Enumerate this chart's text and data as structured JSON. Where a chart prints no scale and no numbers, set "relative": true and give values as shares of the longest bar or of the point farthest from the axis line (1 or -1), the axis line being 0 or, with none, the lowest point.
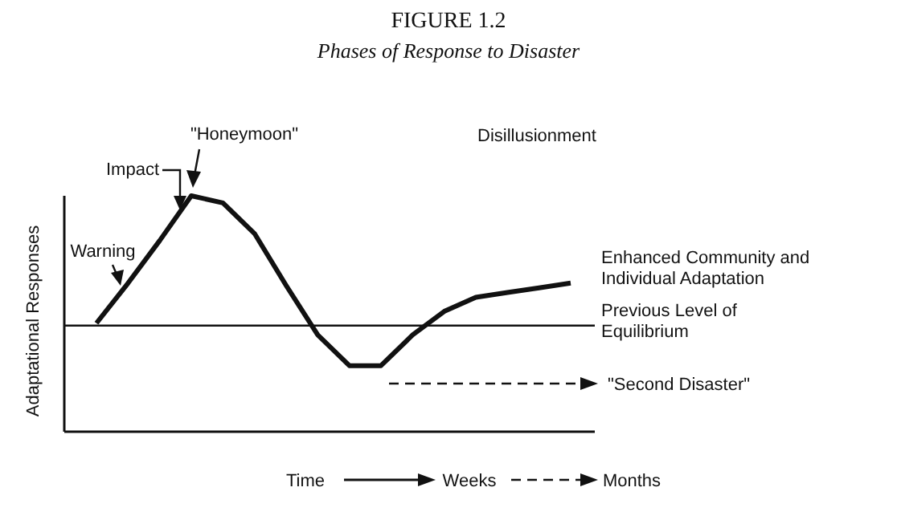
{
  "chart_data": {
    "type": "line",
    "relative": true,
    "title": "FIGURE 1.2",
    "subtitle": "Phases of Response to Disaster",
    "ylabel": "Adaptational Responses",
    "categories": [
      null,
      null,
      null,
      null,
      null,
      null,
      null,
      null,
      null,
      null,
      null,
      null,
      null,
      null,
      null,
      null
    ],
    "series": [
      {
        "color": "#111111",
        "values": [
          0.46,
          0.63,
          0.81,
          1,
          0.97,
          0.84,
          0.62,
          0.41,
          0.28,
          0.28,
          0.41,
          0.51,
          0.57,
          0.59,
          0.61,
          0.63
        ]
      }
    ],
    "line_style": "solid",
    "ref_lines": [
      {
        "axis": "y",
        "value": 0.45,
        "label": "Previous Level of Equilibrium",
        "color": "#111111"
      }
    ],
    "annotations": [
      "Warning",
      "Impact",
      "\"Honeymoon\"",
      "Disillusionment",
      "Enhanced Community and Individual Adaptation",
      "\"Second Disaster\"",
      "Time",
      "Weeks",
      "Months"
    ]
  }
}
